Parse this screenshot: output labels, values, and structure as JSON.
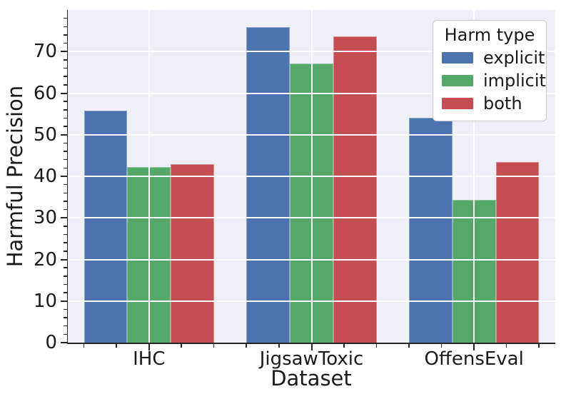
{
  "chart_data": {
    "type": "bar",
    "title": "",
    "xlabel": "Dataset",
    "ylabel": "Harmful Precision",
    "categories": [
      "IHC",
      "JigsawToxic",
      "OffensEval"
    ],
    "series": [
      {
        "name": "explicit",
        "color": "#4c72b0",
        "values": [
          55.8,
          75.8,
          54.0
        ]
      },
      {
        "name": "implicit",
        "color": "#55a868",
        "values": [
          42.3,
          67.2,
          34.3
        ]
      },
      {
        "name": "both",
        "color": "#c44e52",
        "values": [
          43.0,
          73.6,
          43.4
        ]
      }
    ],
    "ylim": [
      0,
      80
    ],
    "yticks": [
      0,
      10,
      20,
      30,
      40,
      50,
      60,
      70
    ],
    "y_minor_step": 2,
    "grid": true,
    "grid_over_bars": true,
    "legend": {
      "title": "Harm type",
      "position": "upper right"
    }
  },
  "style": {
    "plot_bg": "#f0eef7",
    "grid_color": "#ffffff",
    "text_color": "#1a1a1a",
    "spine_color": "#262626",
    "legend_bg": "#ffffff",
    "legend_border": "#cccccc"
  }
}
